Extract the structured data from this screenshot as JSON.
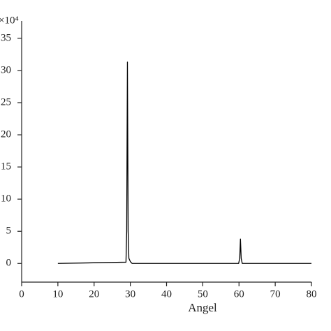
{
  "chart_data": {
    "type": "line",
    "x_label": "Angel",
    "y_multiplier": "×10⁴",
    "x": [
      10,
      28.8,
      29.0,
      29.2,
      29.4,
      29.6,
      30.0,
      30.5,
      59.9,
      60.2,
      60.4,
      60.6,
      60.9,
      80
    ],
    "series": [
      {
        "color": "#000000",
        "values": [
          0,
          0.2,
          5,
          31.3,
          5,
          0.8,
          0.3,
          0,
          0,
          0.8,
          3.8,
          0.8,
          0,
          0
        ]
      }
    ],
    "xlim": [
      0,
      80
    ],
    "xticks": [
      0,
      10,
      20,
      30,
      40,
      50,
      60,
      70,
      80
    ],
    "ylim": [
      -2.9,
      37.7
    ],
    "yticks": [
      0,
      5,
      10,
      15,
      20,
      25,
      30,
      35
    ],
    "grid": false
  }
}
